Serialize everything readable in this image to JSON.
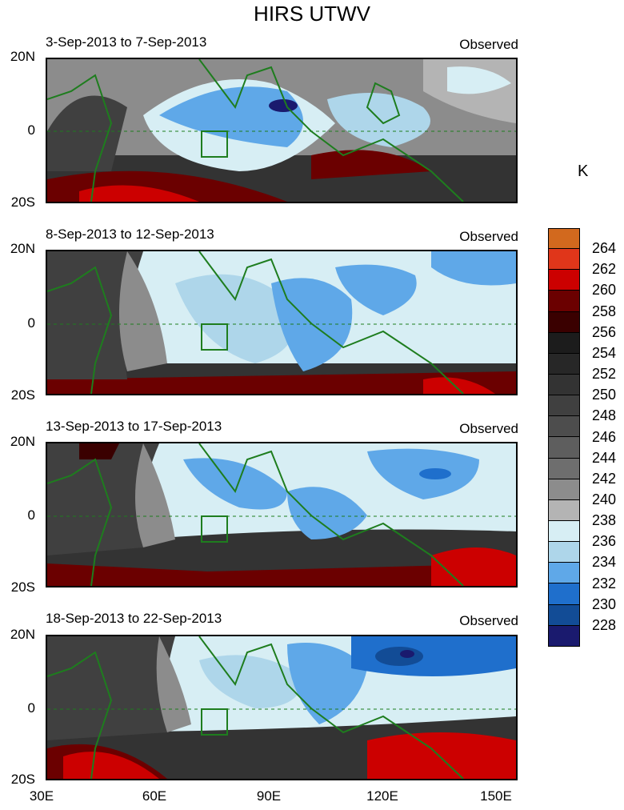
{
  "title": "HIRS UTWV",
  "unit": "K",
  "panels": [
    {
      "title": "3-Sep-2013 to 7-Sep-2013",
      "tag": "Observed"
    },
    {
      "title": "8-Sep-2013 to 12-Sep-2013",
      "tag": "Observed"
    },
    {
      "title": "13-Sep-2013 to 17-Sep-2013",
      "tag": "Observed"
    },
    {
      "title": "18-Sep-2013 to 22-Sep-2013",
      "tag": "Observed"
    }
  ],
  "y_ticks": [
    "20N",
    "0",
    "20S"
  ],
  "x_ticks": [
    "30E",
    "60E",
    "90E",
    "120E",
    "150E"
  ],
  "colorbar": {
    "labels": [
      "264",
      "262",
      "260",
      "258",
      "256",
      "254",
      "252",
      "250",
      "248",
      "246",
      "244",
      "242",
      "240",
      "238",
      "236",
      "234",
      "232",
      "230",
      "228"
    ],
    "colors": [
      "#d2691e",
      "#e0361a",
      "#cc0000",
      "#6b0000",
      "#3a0000",
      "#1c1c1c",
      "#272727",
      "#333333",
      "#404040",
      "#4d4d4d",
      "#5e5e5e",
      "#6e6e6e",
      "#8c8c8c",
      "#b4b4b4",
      "#d7eef4",
      "#aed6ea",
      "#5fa8e8",
      "#1f6fcc",
      "#124c96",
      "#1a1a6e"
    ]
  },
  "map_data": {
    "variable": "UTWV",
    "units": "K",
    "lon_range": [
      30,
      160
    ],
    "lat_range": [
      -20,
      20
    ],
    "equator_line": "dashed",
    "coastline_color": "#1e7d1e"
  }
}
